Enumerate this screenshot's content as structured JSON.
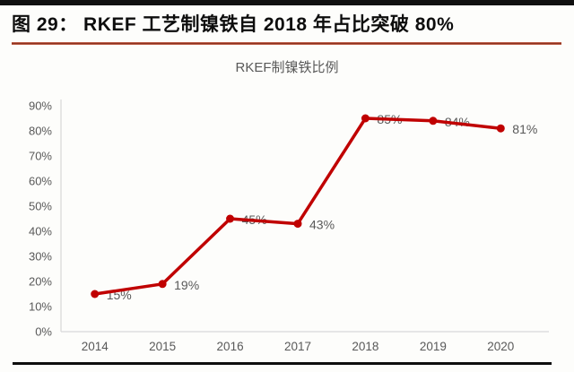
{
  "page": {
    "figure_title": "图 29： RKEF 工艺制镍铁自 2018 年占比突破 80%"
  },
  "colors": {
    "line": "#c00000",
    "marker": "#c00000",
    "label_gray": "#595959",
    "axis_line": "#d9d9d9",
    "heading_rule": "#9e3422",
    "page_rule": "#0d0d0d"
  },
  "chart_data": {
    "type": "line",
    "title": "RKEF制镍铁比例",
    "categories": [
      "2014",
      "2015",
      "2016",
      "2017",
      "2018",
      "2019",
      "2020"
    ],
    "series": [
      {
        "name": "RKEF制镍铁比例",
        "values": [
          15,
          19,
          45,
          43,
          85,
          84,
          81
        ]
      }
    ],
    "data_labels": [
      "15%",
      "19%",
      "45%",
      "43%",
      "85%",
      "84%",
      "81%"
    ],
    "y_ticks": [
      "0%",
      "10%",
      "20%",
      "30%",
      "40%",
      "50%",
      "60%",
      "70%",
      "80%",
      "90%"
    ],
    "ylim": [
      0,
      90
    ],
    "xlabel": "",
    "ylabel": "",
    "grid": false,
    "legend": "none",
    "marker_shape": "circle"
  }
}
